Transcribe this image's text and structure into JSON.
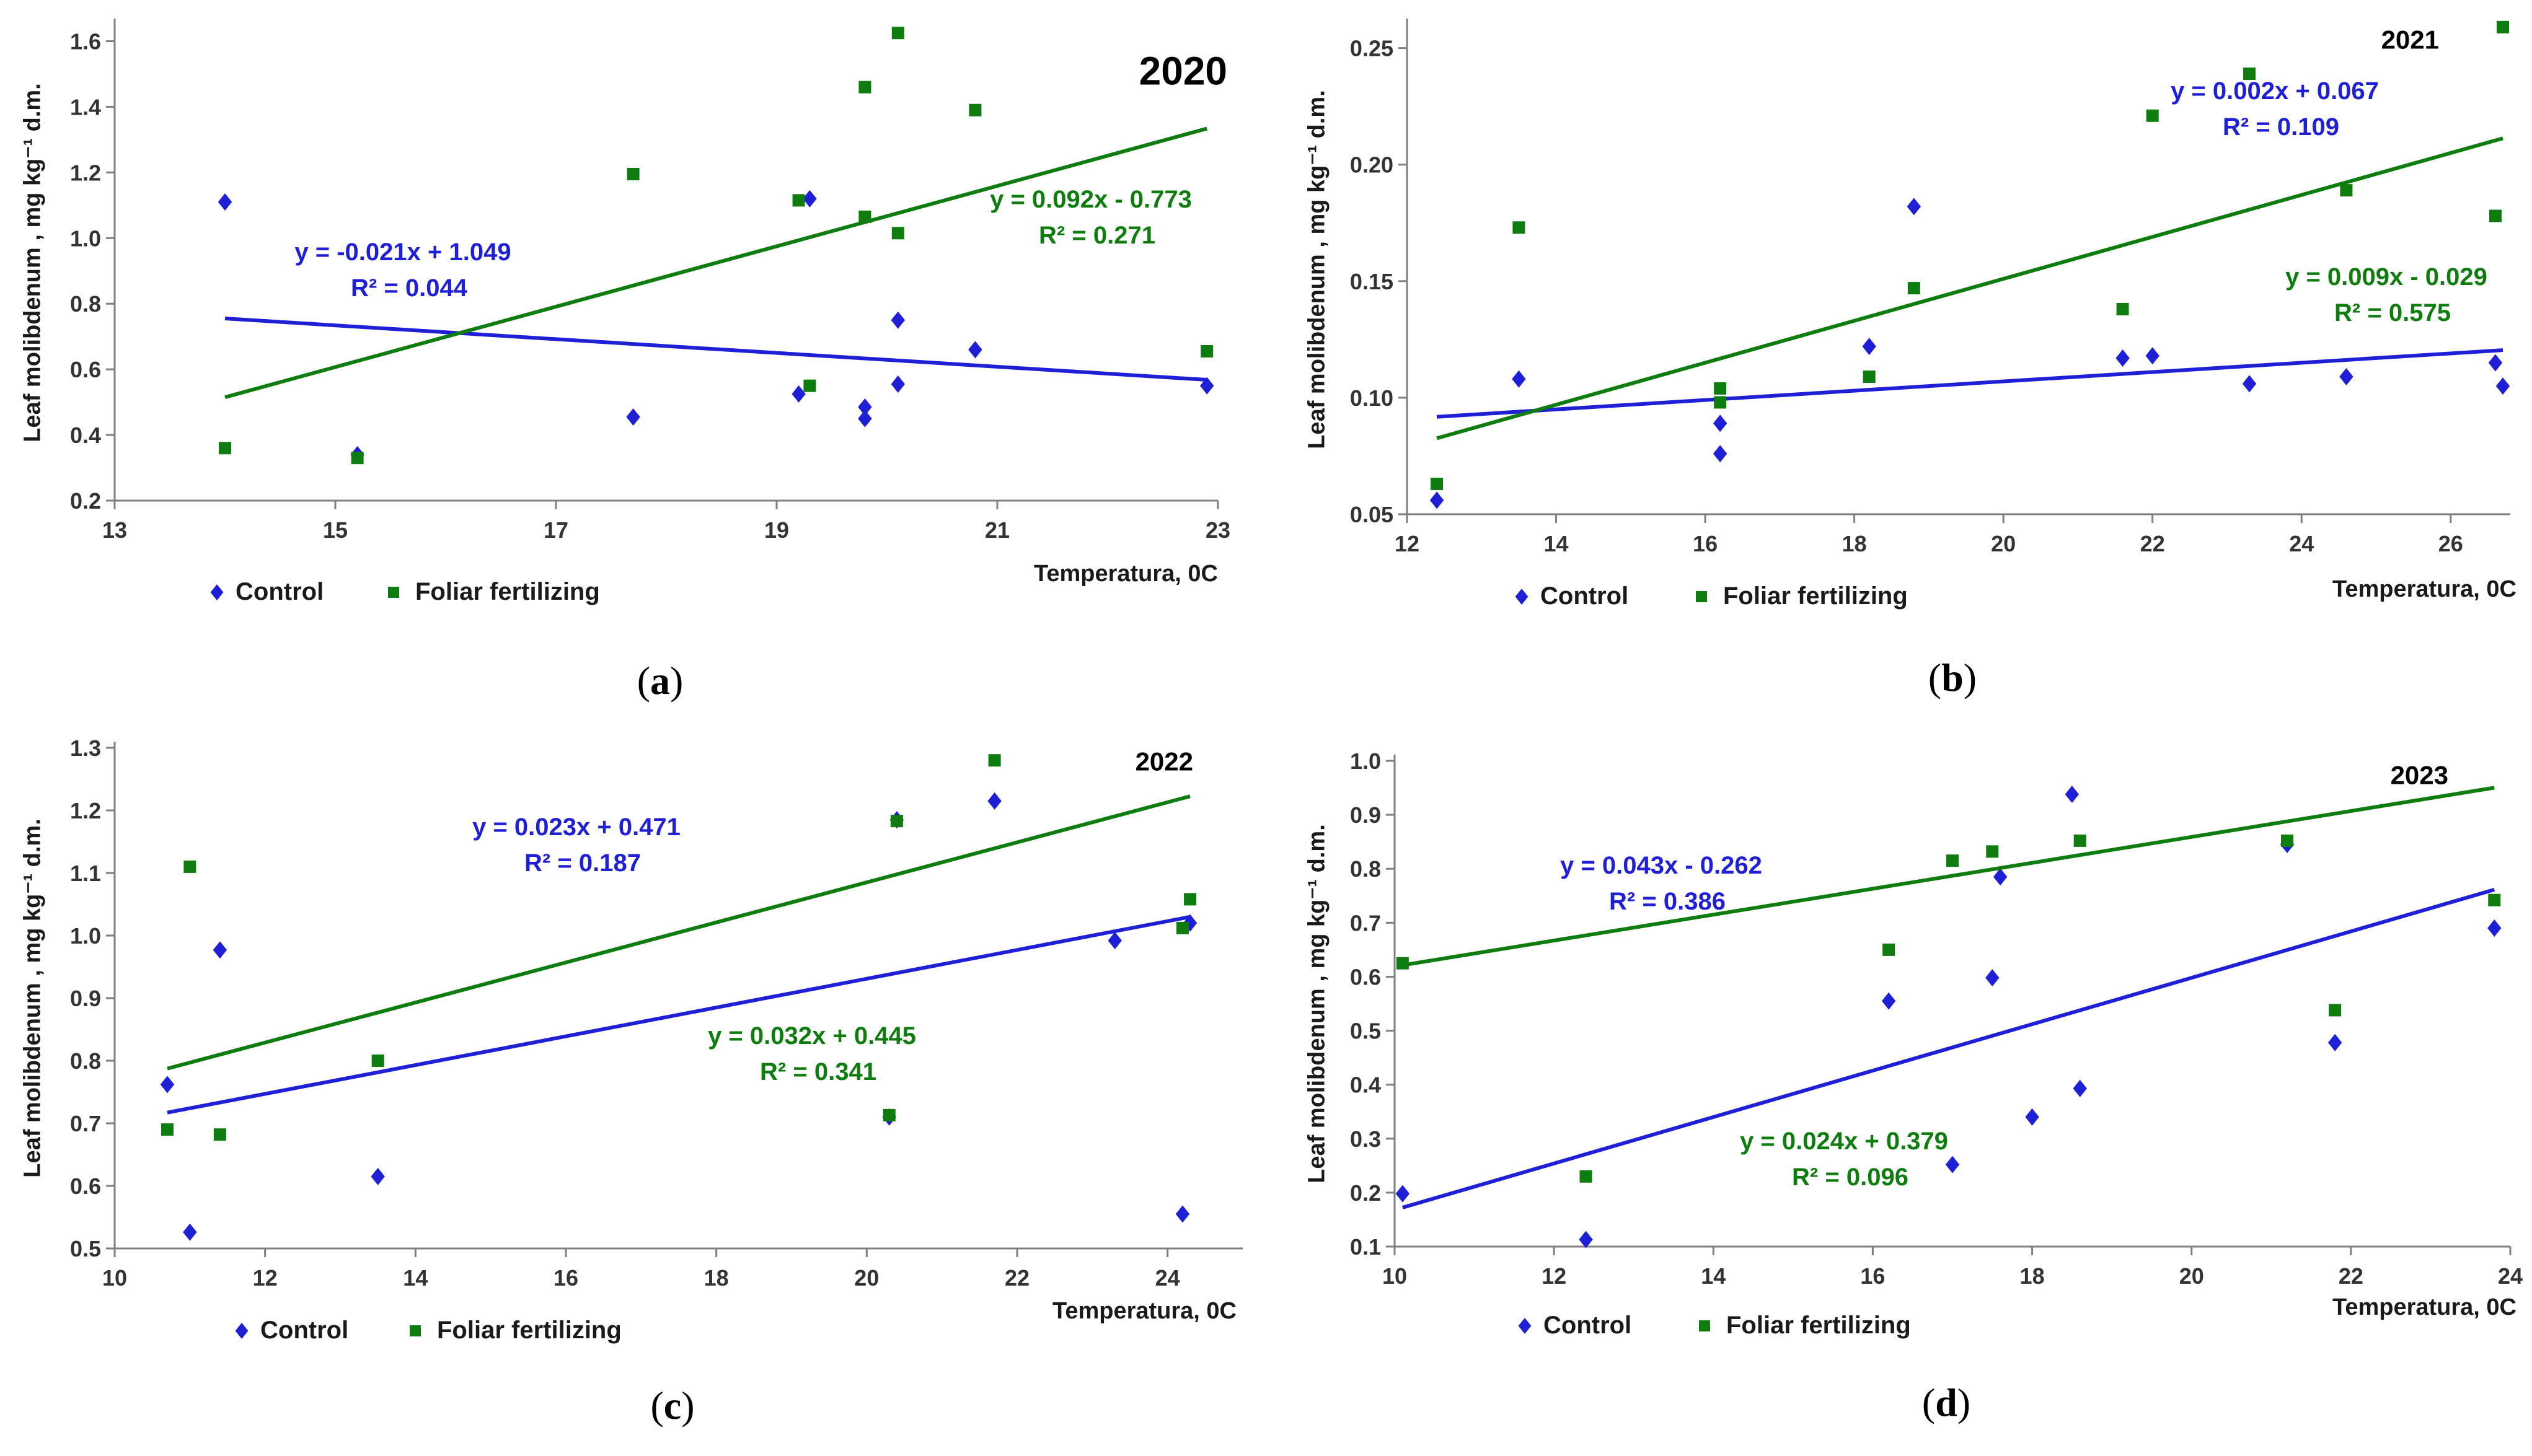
{
  "colors": {
    "control": "#1f1fd6",
    "foliar": "#0e7c0e",
    "axis": "#7f7f7f"
  },
  "chart_data": [
    {
      "type": "scatter",
      "panel_label": "(a)",
      "panel_bold": "a",
      "title": "2020",
      "xlabel": "Temperatura, 0C",
      "ylabel": "Leaf molibdenum , mg kg⁻¹ d.m.",
      "xlim": [
        13,
        23
      ],
      "ylim": [
        0.2,
        1.65
      ],
      "xticks": [
        13,
        15,
        17,
        19,
        21,
        23
      ],
      "xtick_labels": [
        "13",
        "15",
        "17",
        "19",
        "21",
        "23"
      ],
      "yticks": [
        0.2,
        0.4,
        0.6,
        0.8,
        1.0,
        1.2,
        1.4,
        1.6
      ],
      "ytick_labels": [
        "0.2",
        "0.4",
        "0.6",
        "0.8",
        "1.0",
        "1.2",
        "1.4",
        "1.6"
      ],
      "legend": [
        "Control",
        "Foliar fertilizing"
      ],
      "series": [
        {
          "name": "Control",
          "x": [
            14.0,
            15.2,
            17.7,
            19.2,
            19.3,
            19.8,
            19.8,
            20.1,
            20.1,
            20.8,
            22.9
          ],
          "y": [
            1.11,
            0.34,
            0.455,
            0.525,
            1.12,
            0.485,
            0.45,
            0.75,
            0.555,
            0.66,
            0.55
          ],
          "trend": [
            -0.021,
            1.049
          ],
          "trend_range": [
            14.0,
            22.9
          ],
          "equation": "y = -0.021x + 1.049",
          "r2": "R² = 0.044"
        },
        {
          "name": "Foliar fertilizing",
          "x": [
            14.0,
            15.2,
            17.7,
            19.2,
            19.3,
            19.8,
            19.8,
            20.1,
            20.1,
            20.8,
            22.9
          ],
          "y": [
            0.36,
            0.33,
            1.195,
            1.115,
            0.55,
            1.46,
            1.065,
            1.625,
            1.015,
            1.39,
            0.655
          ],
          "trend": [
            0.092,
            -0.773
          ],
          "trend_range": [
            14.0,
            22.9
          ],
          "equation": "y = 0.092x - 0.773",
          "r2": "R² = 0.271"
        }
      ]
    },
    {
      "type": "scatter",
      "panel_label": "(b)",
      "panel_bold": "b",
      "title": "2021",
      "xlabel": "Temperatura, 0C",
      "ylabel": "Leaf molibdenum , mg kg⁻¹ d.m.",
      "xlim": [
        12,
        26.8
      ],
      "ylim": [
        0.05,
        0.26
      ],
      "xticks": [
        12,
        14,
        16,
        18,
        20,
        22,
        24,
        26
      ],
      "xtick_labels": [
        "12",
        "14",
        "16",
        "18",
        "20",
        "22",
        "24",
        "26"
      ],
      "yticks": [
        0.05,
        0.1,
        0.15,
        0.2,
        0.25
      ],
      "ytick_labels": [
        "0.05",
        "0.10",
        "0.15",
        "0.20",
        "0.25"
      ],
      "legend": [
        "Control",
        "Foliar fertilizing"
      ],
      "series": [
        {
          "name": "Control",
          "x": [
            12.4,
            13.5,
            16.2,
            16.2,
            18.2,
            18.8,
            21.6,
            22.0,
            23.3,
            24.6,
            26.6,
            26.7
          ],
          "y": [
            0.056,
            0.108,
            0.089,
            0.076,
            0.122,
            0.182,
            0.117,
            0.118,
            0.106,
            0.109,
            0.115,
            0.105
          ],
          "trend": [
            0.002,
            0.067
          ],
          "trend_range": [
            12.4,
            26.7
          ],
          "equation": "y = 0.002x + 0.067",
          "r2": "R² = 0.109"
        },
        {
          "name": "Foliar fertilizing",
          "x": [
            12.4,
            13.5,
            16.2,
            16.2,
            18.2,
            18.8,
            21.6,
            22.0,
            23.3,
            24.6,
            26.6,
            26.7
          ],
          "y": [
            0.063,
            0.173,
            0.104,
            0.098,
            0.109,
            0.147,
            0.138,
            0.221,
            0.239,
            0.189,
            0.178,
            0.259
          ],
          "trend": [
            0.009,
            -0.029
          ],
          "trend_range": [
            12.4,
            26.7
          ],
          "equation": "y = 0.009x - 0.029",
          "r2": "R² = 0.575"
        }
      ]
    },
    {
      "type": "scatter",
      "panel_label": "(c)",
      "panel_bold": "c",
      "title": "2022",
      "xlabel": "Temperatura, 0C",
      "ylabel": "Leaf molibdenum , mg kg⁻¹ d.m.",
      "xlim": [
        10,
        25
      ],
      "ylim": [
        0.5,
        1.3
      ],
      "xticks": [
        10,
        12,
        14,
        16,
        18,
        20,
        22,
        24
      ],
      "xtick_labels": [
        "10",
        "12",
        "14",
        "16",
        "18",
        "20",
        "22",
        "24"
      ],
      "yticks": [
        0.5,
        0.6,
        0.7,
        0.8,
        0.9,
        1.0,
        1.1,
        1.2,
        1.3
      ],
      "ytick_labels": [
        "0.5",
        "0.6",
        "0.7",
        "0.8",
        "0.9",
        "1.0",
        "1.1",
        "1.2",
        "1.3"
      ],
      "legend": [
        "Control",
        "Foliar fertilizing"
      ],
      "series": [
        {
          "name": "Control",
          "x": [
            10.7,
            11.0,
            11.4,
            13.5,
            20.3,
            20.4,
            21.7,
            23.3,
            24.2,
            24.3
          ],
          "y": [
            0.762,
            0.526,
            0.977,
            0.615,
            0.71,
            1.185,
            1.215,
            0.992,
            0.555,
            1.02
          ],
          "trend": [
            0.023,
            0.471
          ],
          "trend_range": [
            10.7,
            24.3
          ],
          "equation": "y = 0.023x + 0.471",
          "r2": "R² = 0.187"
        },
        {
          "name": "Foliar fertilizing",
          "x": [
            10.7,
            11.0,
            11.4,
            13.5,
            20.3,
            20.4,
            21.7,
            24.2,
            24.3
          ],
          "y": [
            0.69,
            1.11,
            0.682,
            0.8,
            0.713,
            1.183,
            1.28,
            1.012,
            1.058
          ],
          "trend": [
            0.032,
            0.445
          ],
          "trend_range": [
            10.7,
            24.3
          ],
          "equation": "y = 0.032x + 0.445",
          "r2": "R² = 0.341"
        }
      ]
    },
    {
      "type": "scatter",
      "panel_label": "(d)",
      "panel_bold": "d",
      "title": "2023",
      "xlabel": "Temperatura, 0C",
      "ylabel": "Leaf molibdenum , mg kg⁻¹ d.m.",
      "xlim": [
        10,
        24
      ],
      "ylim": [
        0.1,
        1.0
      ],
      "xticks": [
        10,
        12,
        14,
        16,
        18,
        20,
        22,
        24
      ],
      "xtick_labels": [
        "10",
        "12",
        "14",
        "16",
        "18",
        "20",
        "22",
        "24"
      ],
      "yticks": [
        0.1,
        0.2,
        0.3,
        0.4,
        0.5,
        0.6,
        0.7,
        0.8,
        0.9,
        1.0
      ],
      "ytick_labels": [
        "0.1",
        "0.2",
        "0.3",
        "0.4",
        "0.5",
        "0.6",
        "0.7",
        "0.8",
        "0.9",
        "1.0"
      ],
      "legend": [
        "Control",
        "Foliar fertilizing"
      ],
      "series": [
        {
          "name": "Control",
          "x": [
            10.1,
            12.4,
            16.2,
            17.0,
            17.5,
            17.6,
            18.0,
            18.5,
            18.6,
            21.2,
            21.8,
            23.8
          ],
          "y": [
            0.198,
            0.113,
            0.555,
            0.252,
            0.598,
            0.785,
            0.34,
            0.938,
            0.393,
            0.845,
            0.478,
            0.69
          ],
          "trend": [
            0.043,
            -0.262
          ],
          "trend_range": [
            10.1,
            23.8
          ],
          "equation": "y = 0.043x - 0.262",
          "r2": "R² = 0.386"
        },
        {
          "name": "Foliar fertilizing",
          "x": [
            10.1,
            12.4,
            16.2,
            17.0,
            17.5,
            18.6,
            21.2,
            21.8,
            23.8
          ],
          "y": [
            0.625,
            0.23,
            0.65,
            0.815,
            0.832,
            0.852,
            0.852,
            0.538,
            0.742
          ],
          "trend": [
            0.024,
            0.379
          ],
          "trend_range": [
            10.1,
            23.8
          ],
          "equation": "y = 0.024x + 0.379",
          "r2": "R² = 0.096"
        }
      ]
    }
  ]
}
